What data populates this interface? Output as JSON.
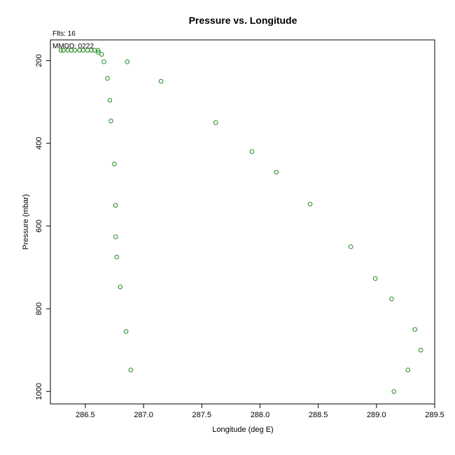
{
  "chart_data": {
    "type": "scatter",
    "title": "Pressure vs. Longitude",
    "annotations": {
      "flights": "Flts: 16",
      "date": "MMDD: 0222"
    },
    "xlabel": "Longitude (deg E)",
    "ylabel": "Pressure (mbar)",
    "xlim": [
      286.2,
      289.5
    ],
    "ylim": [
      1030,
      150
    ],
    "y_inverted": true,
    "grid": false,
    "marker": "open-circle",
    "marker_color": "#228B22",
    "x_ticks": [
      "286.5",
      "287.0",
      "287.5",
      "288.0",
      "288.5",
      "289.0",
      "289.5"
    ],
    "y_ticks": [
      "200",
      "400",
      "600",
      "800",
      "1000"
    ],
    "x_tick_values": [
      286.5,
      287.0,
      287.5,
      288.0,
      288.5,
      289.0,
      289.5
    ],
    "y_tick_values": [
      200,
      400,
      600,
      800,
      1000
    ],
    "series": [
      {
        "points": [
          {
            "x": 286.29,
            "y": 175
          },
          {
            "x": 286.31,
            "y": 175
          },
          {
            "x": 286.35,
            "y": 175
          },
          {
            "x": 286.38,
            "y": 175
          },
          {
            "x": 286.41,
            "y": 175
          },
          {
            "x": 286.45,
            "y": 175
          },
          {
            "x": 286.48,
            "y": 175
          },
          {
            "x": 286.52,
            "y": 175
          },
          {
            "x": 286.55,
            "y": 175
          },
          {
            "x": 286.58,
            "y": 175
          },
          {
            "x": 286.61,
            "y": 175
          },
          {
            "x": 286.61,
            "y": 180
          },
          {
            "x": 286.64,
            "y": 185
          },
          {
            "x": 286.66,
            "y": 203
          },
          {
            "x": 286.86,
            "y": 203
          },
          {
            "x": 286.69,
            "y": 243
          },
          {
            "x": 287.15,
            "y": 250
          },
          {
            "x": 286.71,
            "y": 296
          },
          {
            "x": 286.72,
            "y": 346
          },
          {
            "x": 287.62,
            "y": 350
          },
          {
            "x": 287.93,
            "y": 420
          },
          {
            "x": 286.75,
            "y": 450
          },
          {
            "x": 288.14,
            "y": 470
          },
          {
            "x": 288.43,
            "y": 547
          },
          {
            "x": 286.76,
            "y": 550
          },
          {
            "x": 286.76,
            "y": 626
          },
          {
            "x": 288.78,
            "y": 650
          },
          {
            "x": 286.77,
            "y": 675
          },
          {
            "x": 288.99,
            "y": 727
          },
          {
            "x": 286.8,
            "y": 747
          },
          {
            "x": 289.13,
            "y": 776
          },
          {
            "x": 289.33,
            "y": 850
          },
          {
            "x": 286.85,
            "y": 855
          },
          {
            "x": 289.38,
            "y": 900
          },
          {
            "x": 286.89,
            "y": 948
          },
          {
            "x": 289.27,
            "y": 948
          },
          {
            "x": 289.15,
            "y": 1000
          }
        ]
      }
    ]
  }
}
